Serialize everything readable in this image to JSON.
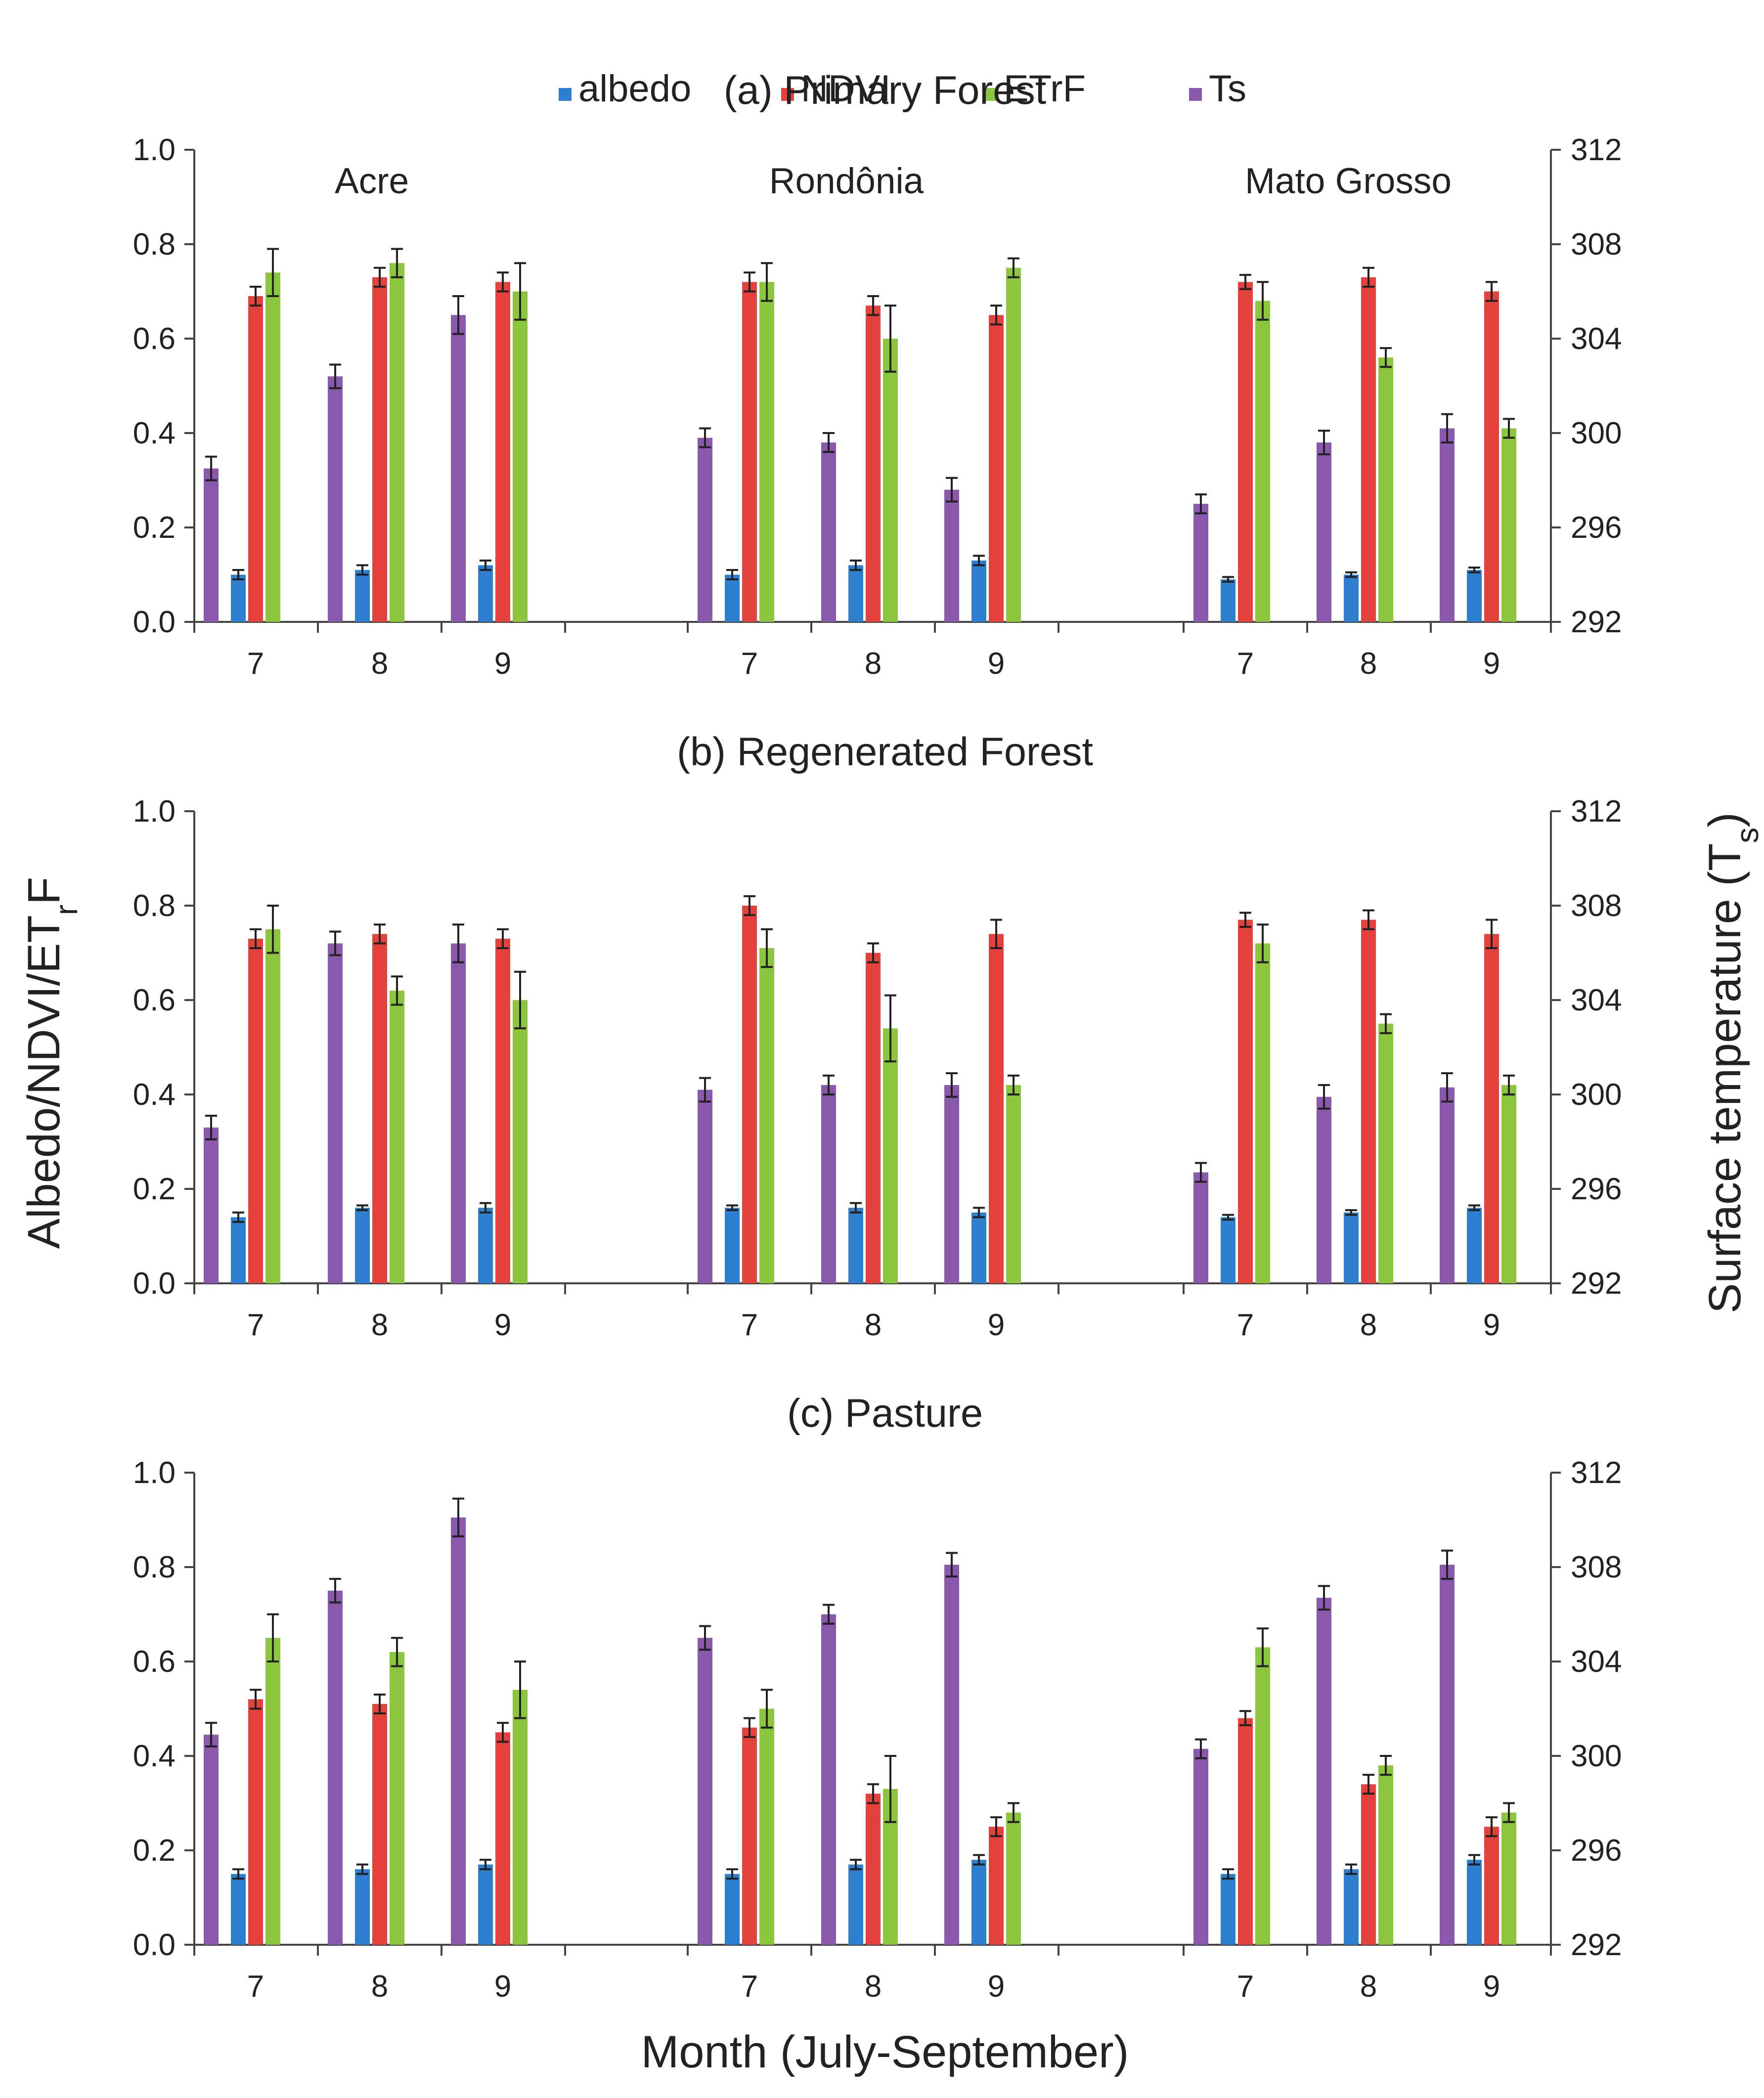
{
  "legend": [
    {
      "key": "albedo",
      "label": "albedo",
      "color": "#2f7fd0"
    },
    {
      "key": "ndvi",
      "label": "NDVI",
      "color": "#e5413d"
    },
    {
      "key": "etrf",
      "label": "ETrF",
      "color": "#8cc63f"
    },
    {
      "key": "ts",
      "label": "Ts",
      "color": "#8a58ad"
    }
  ],
  "axis": {
    "left_label": "Albedo/NDVI/ETrF",
    "right_label": "Surface temperature (Ts)",
    "x_label": "Month (July-September)",
    "left_ticks": [
      "0.0",
      "0.2",
      "0.4",
      "0.6",
      "0.8",
      "1.0"
    ],
    "right_ticks": [
      "292",
      "296",
      "300",
      "304",
      "308",
      "312"
    ]
  },
  "chart_data": [
    {
      "type": "bar",
      "title": "(a) Primary Forest",
      "regions": [
        "Acre",
        "Rondônia",
        "Mato Grosso"
      ],
      "months": [
        "7",
        "8",
        "9"
      ],
      "ylim": [
        0,
        1.0
      ],
      "y2lim": [
        292,
        312
      ],
      "series": [
        {
          "name": "albedo",
          "values": [
            [
              0.1,
              0.11,
              0.12
            ],
            [
              0.1,
              0.12,
              0.13
            ],
            [
              0.09,
              0.1,
              0.11
            ]
          ],
          "errors": [
            [
              0.01,
              0.01,
              0.01
            ],
            [
              0.01,
              0.01,
              0.01
            ],
            [
              0.005,
              0.005,
              0.005
            ]
          ]
        },
        {
          "name": "NDVI",
          "values": [
            [
              0.69,
              0.73,
              0.72
            ],
            [
              0.72,
              0.67,
              0.65
            ],
            [
              0.72,
              0.73,
              0.7
            ]
          ],
          "errors": [
            [
              0.02,
              0.02,
              0.02
            ],
            [
              0.02,
              0.02,
              0.02
            ],
            [
              0.015,
              0.02,
              0.02
            ]
          ]
        },
        {
          "name": "ETrF",
          "values": [
            [
              0.74,
              0.76,
              0.7
            ],
            [
              0.72,
              0.6,
              0.75
            ],
            [
              0.68,
              0.56,
              0.41
            ]
          ],
          "errors": [
            [
              0.05,
              0.03,
              0.06
            ],
            [
              0.04,
              0.07,
              0.02
            ],
            [
              0.04,
              0.02,
              0.02
            ]
          ]
        },
        {
          "name": "Ts",
          "values": [
            [
              298.5,
              302.4,
              305.0
            ],
            [
              299.8,
              299.6,
              297.6
            ],
            [
              297.0,
              299.6,
              300.2
            ]
          ],
          "errors": [
            [
              0.5,
              0.5,
              0.8
            ],
            [
              0.4,
              0.4,
              0.5
            ],
            [
              0.4,
              0.5,
              0.6
            ]
          ]
        }
      ]
    },
    {
      "type": "bar",
      "title": "(b) Regenerated Forest",
      "regions": [
        "Acre",
        "Rondônia",
        "Mato Grosso"
      ],
      "months": [
        "7",
        "8",
        "9"
      ],
      "ylim": [
        0,
        1.0
      ],
      "y2lim": [
        292,
        312
      ],
      "series": [
        {
          "name": "albedo",
          "values": [
            [
              0.14,
              0.16,
              0.16
            ],
            [
              0.16,
              0.16,
              0.15
            ],
            [
              0.14,
              0.15,
              0.16
            ]
          ],
          "errors": [
            [
              0.01,
              0.005,
              0.01
            ],
            [
              0.005,
              0.01,
              0.01
            ],
            [
              0.005,
              0.005,
              0.005
            ]
          ]
        },
        {
          "name": "NDVI",
          "values": [
            [
              0.73,
              0.74,
              0.73
            ],
            [
              0.8,
              0.7,
              0.74
            ],
            [
              0.77,
              0.77,
              0.74
            ]
          ],
          "errors": [
            [
              0.02,
              0.02,
              0.02
            ],
            [
              0.02,
              0.02,
              0.03
            ],
            [
              0.015,
              0.02,
              0.03
            ]
          ]
        },
        {
          "name": "ETrF",
          "values": [
            [
              0.75,
              0.62,
              0.6
            ],
            [
              0.71,
              0.54,
              0.42
            ],
            [
              0.72,
              0.55,
              0.42
            ]
          ],
          "errors": [
            [
              0.05,
              0.03,
              0.06
            ],
            [
              0.04,
              0.07,
              0.02
            ],
            [
              0.04,
              0.02,
              0.02
            ]
          ]
        },
        {
          "name": "Ts",
          "values": [
            [
              298.6,
              306.4,
              306.4
            ],
            [
              300.2,
              300.4,
              300.4
            ],
            [
              296.7,
              299.9,
              300.3
            ]
          ],
          "errors": [
            [
              0.5,
              0.5,
              0.8
            ],
            [
              0.5,
              0.4,
              0.5
            ],
            [
              0.4,
              0.5,
              0.6
            ]
          ]
        }
      ]
    },
    {
      "type": "bar",
      "title": "(c) Pasture",
      "regions": [
        "Acre",
        "Rondônia",
        "Mato Grosso"
      ],
      "months": [
        "7",
        "8",
        "9"
      ],
      "ylim": [
        0,
        1.0
      ],
      "y2lim": [
        292,
        312
      ],
      "series": [
        {
          "name": "albedo",
          "values": [
            [
              0.15,
              0.16,
              0.17
            ],
            [
              0.15,
              0.17,
              0.18
            ],
            [
              0.15,
              0.16,
              0.18
            ]
          ],
          "errors": [
            [
              0.01,
              0.01,
              0.01
            ],
            [
              0.01,
              0.01,
              0.01
            ],
            [
              0.01,
              0.01,
              0.01
            ]
          ]
        },
        {
          "name": "NDVI",
          "values": [
            [
              0.52,
              0.51,
              0.45
            ],
            [
              0.46,
              0.32,
              0.25
            ],
            [
              0.48,
              0.34,
              0.25
            ]
          ],
          "errors": [
            [
              0.02,
              0.02,
              0.02
            ],
            [
              0.02,
              0.02,
              0.02
            ],
            [
              0.015,
              0.02,
              0.02
            ]
          ]
        },
        {
          "name": "ETrF",
          "values": [
            [
              0.65,
              0.62,
              0.54
            ],
            [
              0.5,
              0.33,
              0.28
            ],
            [
              0.63,
              0.38,
              0.28
            ]
          ],
          "errors": [
            [
              0.05,
              0.03,
              0.06
            ],
            [
              0.04,
              0.07,
              0.02
            ],
            [
              0.04,
              0.02,
              0.02
            ]
          ]
        },
        {
          "name": "Ts",
          "values": [
            [
              300.9,
              307.0,
              310.1
            ],
            [
              305.0,
              306.0,
              308.1
            ],
            [
              300.3,
              306.7,
              308.1
            ]
          ],
          "errors": [
            [
              0.5,
              0.5,
              0.8
            ],
            [
              0.5,
              0.4,
              0.5
            ],
            [
              0.4,
              0.5,
              0.6
            ]
          ]
        }
      ]
    }
  ]
}
